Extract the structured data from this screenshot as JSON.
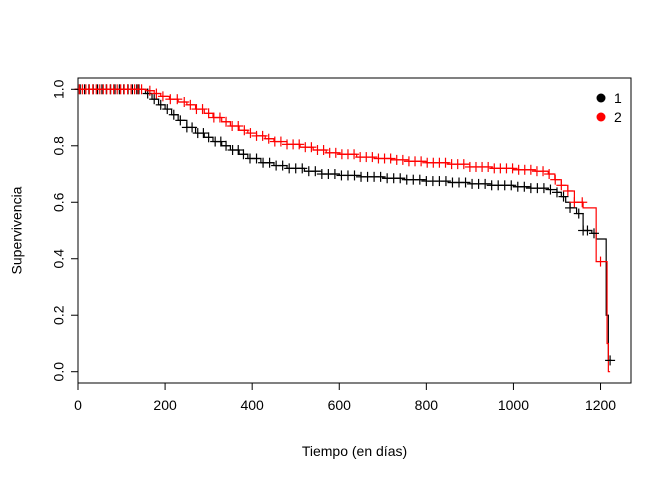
{
  "chart_data": {
    "type": "line",
    "title": "",
    "xlabel": "Tiempo (en días)",
    "ylabel": "Supervivencia",
    "xlim": [
      0,
      1270
    ],
    "ylim": [
      -0.04,
      1.04
    ],
    "xticks": [
      0,
      200,
      400,
      600,
      800,
      1000,
      1200
    ],
    "yticks": [
      0.0,
      0.2,
      0.4,
      0.6,
      0.8,
      1.0
    ],
    "grid": false,
    "legend_position": "top-right",
    "series": [
      {
        "name": "1",
        "color": "#000000",
        "step": [
          [
            0,
            1.0
          ],
          [
            145,
            1.0
          ],
          [
            155,
            0.985
          ],
          [
            170,
            0.965
          ],
          [
            185,
            0.945
          ],
          [
            200,
            0.93
          ],
          [
            215,
            0.91
          ],
          [
            230,
            0.89
          ],
          [
            250,
            0.865
          ],
          [
            270,
            0.845
          ],
          [
            290,
            0.83
          ],
          [
            310,
            0.815
          ],
          [
            330,
            0.8
          ],
          [
            350,
            0.785
          ],
          [
            370,
            0.77
          ],
          [
            390,
            0.755
          ],
          [
            420,
            0.74
          ],
          [
            450,
            0.73
          ],
          [
            480,
            0.72
          ],
          [
            520,
            0.71
          ],
          [
            560,
            0.7
          ],
          [
            600,
            0.695
          ],
          [
            650,
            0.69
          ],
          [
            700,
            0.685
          ],
          [
            750,
            0.68
          ],
          [
            800,
            0.675
          ],
          [
            850,
            0.67
          ],
          [
            900,
            0.665
          ],
          [
            950,
            0.66
          ],
          [
            1000,
            0.655
          ],
          [
            1040,
            0.65
          ],
          [
            1080,
            0.645
          ],
          [
            1100,
            0.635
          ],
          [
            1110,
            0.62
          ],
          [
            1120,
            0.6
          ],
          [
            1130,
            0.58
          ],
          [
            1145,
            0.56
          ],
          [
            1160,
            0.5
          ],
          [
            1180,
            0.49
          ],
          [
            1190,
            0.47
          ],
          [
            1213,
            0.2
          ],
          [
            1218,
            0.04
          ],
          [
            1225,
            0.04
          ]
        ],
        "censor_x": [
          5,
          15,
          25,
          35,
          45,
          55,
          65,
          75,
          85,
          95,
          105,
          115,
          125,
          135,
          140,
          160,
          175,
          190,
          205,
          220,
          235,
          250,
          262,
          275,
          288,
          300,
          315,
          328,
          340,
          355,
          368,
          380,
          395,
          410,
          425,
          440,
          455,
          470,
          485,
          500,
          515,
          530,
          545,
          560,
          575,
          590,
          605,
          620,
          635,
          650,
          665,
          680,
          695,
          710,
          725,
          740,
          755,
          770,
          785,
          800,
          815,
          830,
          845,
          860,
          875,
          890,
          905,
          920,
          935,
          950,
          965,
          980,
          995,
          1010,
          1025,
          1040,
          1055,
          1070,
          1085,
          1100,
          1115,
          1130,
          1150,
          1160,
          1170,
          1185,
          1222
        ]
      },
      {
        "name": "2",
        "color": "#ff0000",
        "step": [
          [
            0,
            1.0
          ],
          [
            150,
            1.0
          ],
          [
            160,
            0.995
          ],
          [
            175,
            0.985
          ],
          [
            190,
            0.975
          ],
          [
            210,
            0.965
          ],
          [
            230,
            0.955
          ],
          [
            250,
            0.945
          ],
          [
            270,
            0.93
          ],
          [
            290,
            0.915
          ],
          [
            310,
            0.9
          ],
          [
            330,
            0.885
          ],
          [
            350,
            0.87
          ],
          [
            370,
            0.855
          ],
          [
            390,
            0.845
          ],
          [
            410,
            0.835
          ],
          [
            430,
            0.825
          ],
          [
            450,
            0.815
          ],
          [
            480,
            0.805
          ],
          [
            510,
            0.795
          ],
          [
            540,
            0.785
          ],
          [
            570,
            0.775
          ],
          [
            600,
            0.77
          ],
          [
            640,
            0.76
          ],
          [
            680,
            0.755
          ],
          [
            720,
            0.75
          ],
          [
            760,
            0.745
          ],
          [
            800,
            0.74
          ],
          [
            850,
            0.735
          ],
          [
            900,
            0.725
          ],
          [
            950,
            0.72
          ],
          [
            1000,
            0.715
          ],
          [
            1050,
            0.71
          ],
          [
            1080,
            0.7
          ],
          [
            1095,
            0.68
          ],
          [
            1110,
            0.66
          ],
          [
            1125,
            0.64
          ],
          [
            1140,
            0.6
          ],
          [
            1160,
            0.58
          ],
          [
            1180,
            0.58
          ],
          [
            1190,
            0.39
          ],
          [
            1210,
            0.39
          ],
          [
            1215,
            0.1
          ],
          [
            1218,
            0.0
          ],
          [
            1222,
            0.0
          ]
        ],
        "censor_x": [
          3,
          10,
          18,
          26,
          34,
          42,
          50,
          58,
          66,
          74,
          82,
          90,
          98,
          106,
          114,
          122,
          130,
          138,
          146,
          165,
          180,
          195,
          212,
          228,
          244,
          258,
          272,
          286,
          300,
          312,
          326,
          340,
          354,
          368,
          382,
          396,
          410,
          424,
          438,
          452,
          466,
          480,
          494,
          508,
          522,
          536,
          550,
          564,
          578,
          592,
          606,
          620,
          634,
          648,
          662,
          676,
          690,
          704,
          718,
          732,
          746,
          760,
          774,
          788,
          802,
          816,
          830,
          844,
          858,
          872,
          886,
          900,
          914,
          928,
          942,
          956,
          970,
          984,
          998,
          1012,
          1026,
          1040,
          1054,
          1068,
          1082,
          1096,
          1110,
          1125,
          1140,
          1158,
          1200
        ]
      }
    ]
  }
}
